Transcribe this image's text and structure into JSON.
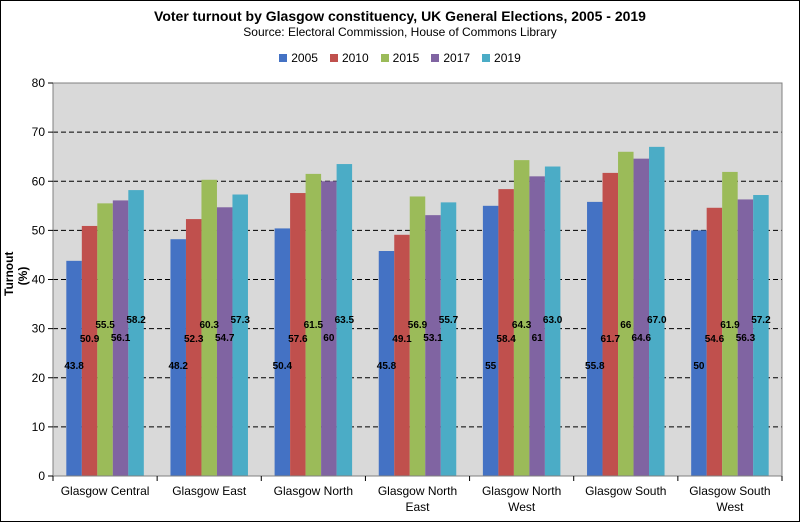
{
  "chart_data": {
    "type": "bar",
    "title": "Voter turnout by Glasgow constituency, UK General Elections, 2005 - 2019",
    "subtitle": "Source: Electoral Commission, House of Commons Library",
    "xlabel": "",
    "ylabel": "Turnout (%)",
    "ylim": [
      0,
      80
    ],
    "yticks": [
      0,
      10,
      20,
      30,
      40,
      50,
      60,
      70,
      80
    ],
    "grid": true,
    "legend_position": "top",
    "categories": [
      [
        "Glasgow Central"
      ],
      [
        "Glasgow East"
      ],
      [
        "Glasgow North"
      ],
      [
        "Glasgow North",
        "East"
      ],
      [
        "Glasgow North",
        "West"
      ],
      [
        "Glasgow South"
      ],
      [
        "Glasgow South",
        "West"
      ]
    ],
    "series": [
      {
        "name": "2005",
        "color": "#4472C4",
        "values": [
          43.8,
          48.2,
          50.4,
          45.8,
          55,
          55.8,
          50
        ],
        "labels": [
          "43.8",
          "48.2",
          "50.4",
          "45.8",
          "55",
          "55.8",
          "50"
        ]
      },
      {
        "name": "2010",
        "color": "#C0504D",
        "values": [
          50.9,
          52.3,
          57.6,
          49.1,
          58.4,
          61.7,
          54.6
        ],
        "labels": [
          "50.9",
          "52.3",
          "57.6",
          "49.1",
          "58.4",
          "61.7",
          "54.6"
        ]
      },
      {
        "name": "2015",
        "color": "#9BBB59",
        "values": [
          55.5,
          60.3,
          61.5,
          56.9,
          64.3,
          66,
          61.9
        ],
        "labels": [
          "55.5",
          "60.3",
          "61.5",
          "56.9",
          "64.3",
          "66",
          "61.9"
        ]
      },
      {
        "name": "2017",
        "color": "#8064A2",
        "values": [
          56.1,
          54.7,
          60,
          53.1,
          61,
          64.6,
          56.3
        ],
        "labels": [
          "56.1",
          "54.7",
          "60",
          "53.1",
          "61",
          "64.6",
          "56.3"
        ]
      },
      {
        "name": "2019",
        "color": "#4BACC6",
        "values": [
          58.2,
          57.3,
          63.5,
          55.7,
          63.0,
          67.0,
          57.2
        ],
        "labels": [
          "58.2",
          "57.3",
          "63.5",
          "55.7",
          "63.0",
          "67.0",
          "57.2"
        ]
      }
    ],
    "colors": {
      "plot_background": "#D9D9D9",
      "gridline": "#000000"
    }
  }
}
